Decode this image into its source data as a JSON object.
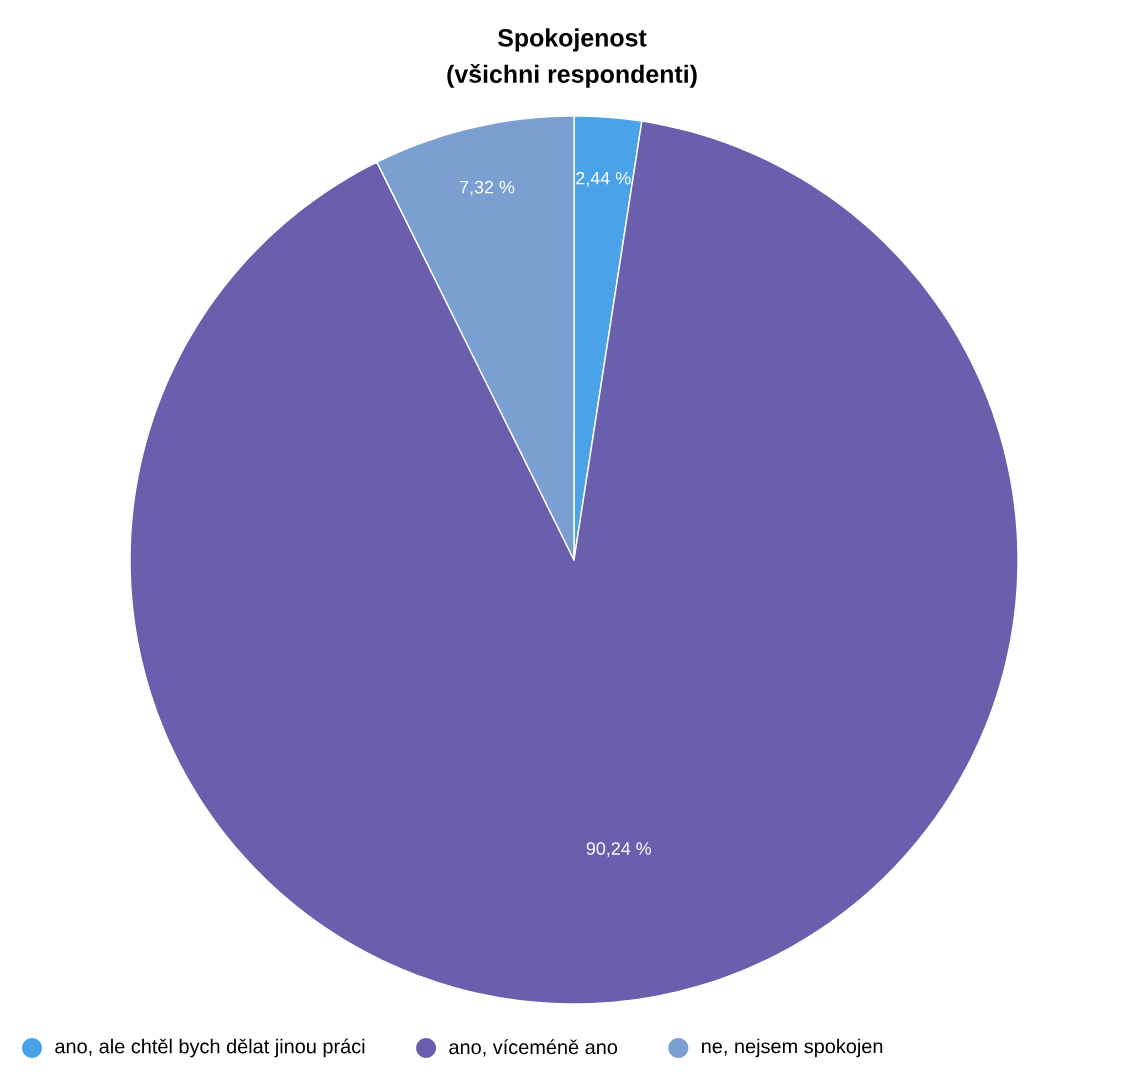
{
  "chart_data": {
    "type": "pie",
    "title": "Spokojenost",
    "subtitle": "(všichni respondenti)",
    "categories": [
      "ano, ale chtěl bych dělat jinou práci",
      "ano, víceméně ano",
      "ne, nejsem spokojen"
    ],
    "values": [
      2.44,
      90.24,
      7.32
    ],
    "colors": [
      "#4aa3e8",
      "#6a5fad",
      "#7a9fd0"
    ],
    "value_labels": [
      "2,44 %",
      "90,24 %",
      "7,32 %"
    ],
    "legend": "bottom"
  }
}
